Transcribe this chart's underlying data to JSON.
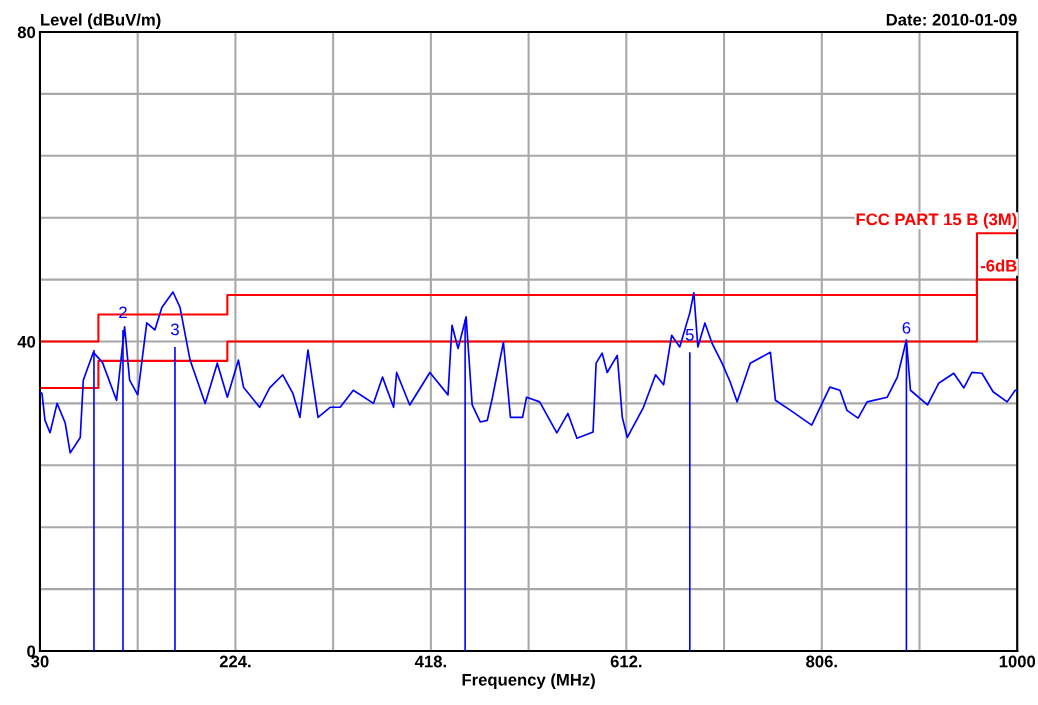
{
  "chart_data": {
    "type": "line",
    "xlabel": "Frequency (MHz)",
    "ylabel": "Level (dBuV/m)",
    "xlim": [
      30,
      1000
    ],
    "ylim": [
      0,
      80
    ],
    "xticks": [
      30,
      {
        "value": 127,
        "label": null
      },
      {
        "value": 224,
        "label": "224."
      },
      {
        "value": 321,
        "label": null
      },
      {
        "value": 418,
        "label": "418."
      },
      {
        "value": 515,
        "label": null
      },
      {
        "value": 612,
        "label": "612."
      },
      {
        "value": 709,
        "label": null
      },
      {
        "value": 806,
        "label": "806."
      },
      {
        "value": 903,
        "label": null
      },
      1000
    ],
    "yticks": [
      0,
      {
        "value": 8,
        "label": null
      },
      {
        "value": 16,
        "label": null
      },
      {
        "value": 24,
        "label": null
      },
      {
        "value": 32,
        "label": null
      },
      40,
      {
        "value": 48,
        "label": null
      },
      {
        "value": 56,
        "label": null
      },
      {
        "value": 64,
        "label": null
      },
      {
        "value": 72,
        "label": null
      },
      80
    ],
    "grid": true,
    "series": [
      {
        "color": "#0000ff",
        "x": [
          30,
          32,
          35,
          40,
          47,
          55,
          60,
          70,
          73,
          83,
          92,
          106,
          114,
          119,
          127,
          136,
          144,
          151,
          162,
          169,
          179,
          194,
          206,
          216,
          227,
          232,
          248,
          258,
          271,
          281,
          288,
          296,
          306,
          318,
          328,
          341,
          361,
          370,
          381,
          384,
          397,
          417,
          435,
          439,
          445,
          453,
          459,
          467,
          474,
          479,
          490,
          497,
          509,
          513,
          526,
          543,
          554,
          563,
          579,
          582,
          588,
          593,
          603,
          608,
          613,
          629,
          641,
          649,
          657,
          665,
          675,
          679,
          683,
          690,
          697,
          707,
          715,
          722,
          735,
          755,
          760,
          775,
          796,
          814,
          824,
          831,
          842,
          851,
          871,
          881,
          890,
          894,
          911,
          922,
          937,
          947,
          955,
          965,
          976,
          990,
          998,
          1000
        ],
        "values": [
          33.5,
          33.3,
          29.8,
          28.2,
          32.0,
          29.5,
          25.6,
          27.6,
          35.0,
          38.6,
          37.3,
          32.4,
          41.9,
          35.0,
          33.1,
          42.4,
          41.5,
          44.4,
          46.4,
          44.4,
          37.6,
          32.0,
          37.2,
          32.8,
          37.6,
          34.1,
          31.5,
          34.0,
          35.7,
          33.3,
          30.2,
          38.9,
          30.2,
          31.5,
          31.5,
          33.7,
          32.0,
          35.4,
          31.5,
          36.0,
          31.8,
          36.0,
          33.1,
          42.1,
          39.1,
          43.2,
          31.8,
          29.6,
          29.8,
          32.7,
          39.9,
          30.2,
          30.2,
          32.8,
          32.2,
          28.2,
          30.7,
          27.5,
          28.3,
          37.2,
          38.5,
          36.0,
          38.2,
          30.2,
          27.6,
          31.5,
          35.7,
          34.4,
          40.8,
          39.3,
          43.7,
          46.3,
          39.3,
          42.4,
          39.8,
          37.2,
          34.8,
          32.2,
          37.2,
          38.6,
          32.4,
          31.1,
          29.2,
          34.1,
          33.7,
          31.1,
          30.1,
          32.2,
          32.8,
          35.4,
          40.2,
          33.7,
          31.8,
          34.6,
          35.9,
          34.0,
          36.0,
          35.9,
          33.5,
          32.2,
          33.7,
          33.7
        ]
      },
      {
        "type": "step",
        "name": "FCC PART 15 B (3M)",
        "color": "#ff0000",
        "x": [
          30,
          88,
          216,
          960,
          1000
        ],
        "values": [
          40,
          43.5,
          46,
          54,
          54
        ]
      },
      {
        "type": "step",
        "name": "-6dB",
        "color": "#ff0000",
        "x": [
          30,
          88,
          216,
          960,
          1000
        ],
        "values": [
          34,
          37.5,
          40,
          48,
          48
        ]
      },
      {
        "type": "bar",
        "color": "#0000ff",
        "x": [
          83.6,
          112.4,
          164,
          452,
          675,
          890
        ],
        "values": [
          38.9,
          41.5,
          39.3,
          42.8,
          38.6,
          39.5
        ]
      }
    ],
    "annotations": [
      {
        "text": "2",
        "x": 112.4,
        "y": 41.5
      },
      {
        "text": "3",
        "x": 164,
        "y": 39.3
      },
      {
        "text": "5",
        "x": 675,
        "y": 38.6
      },
      {
        "text": "6",
        "x": 890,
        "y": 39.5
      },
      "Date: 2010-01-09"
    ]
  }
}
